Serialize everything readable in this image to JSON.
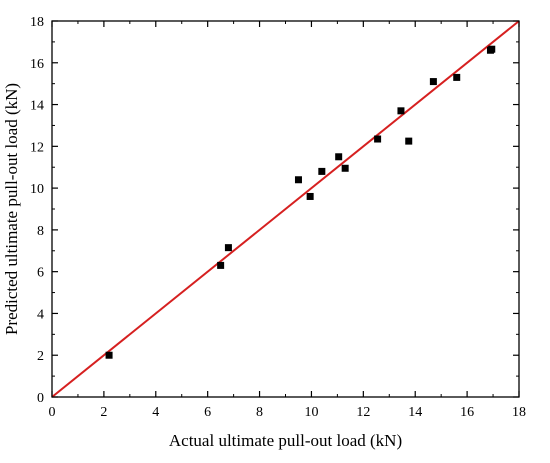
{
  "chart_data": {
    "type": "scatter",
    "title": "",
    "xlabel": "Actual ultimate pull-out load (kN)",
    "ylabel": "Predicted ultimate pull-out load (kN)",
    "xlim": [
      0,
      18
    ],
    "ylim": [
      0,
      18
    ],
    "xticks": [
      0,
      2,
      4,
      6,
      8,
      10,
      12,
      14,
      16,
      18
    ],
    "yticks": [
      0,
      2,
      4,
      6,
      8,
      10,
      12,
      14,
      16,
      18
    ],
    "grid": false,
    "points": {
      "x": [
        2.2,
        6.5,
        6.8,
        9.5,
        9.95,
        10.4,
        11.05,
        11.3,
        12.55,
        13.45,
        13.75,
        14.7,
        15.6,
        16.9,
        16.95
      ],
      "y": [
        2.0,
        6.3,
        7.15,
        10.4,
        9.6,
        10.8,
        11.5,
        10.95,
        12.35,
        13.7,
        12.25,
        15.1,
        15.3,
        16.6,
        16.65
      ],
      "marker": "square",
      "color": "#000000"
    },
    "reference_line": {
      "from": [
        0,
        0
      ],
      "to": [
        18,
        18
      ],
      "color": "#d62020"
    }
  }
}
